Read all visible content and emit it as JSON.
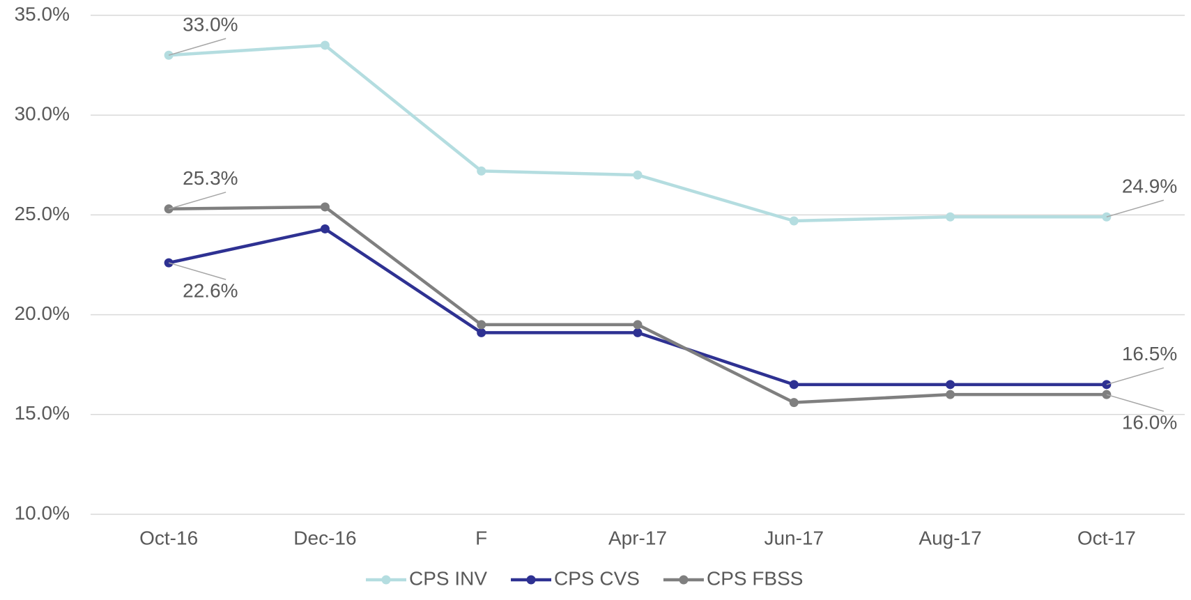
{
  "chart_data": {
    "type": "line",
    "categories": [
      "Oct-16",
      "Dec-16",
      "F",
      "Apr-17",
      "Jun-17",
      "Aug-17",
      "Oct-17"
    ],
    "series": [
      {
        "name": "CPS INV",
        "color": "#b4dde0",
        "values": [
          33.0,
          33.5,
          27.2,
          27.0,
          24.7,
          24.9,
          24.9
        ],
        "value_labels": [
          "33.0%",
          null,
          null,
          null,
          null,
          null,
          "24.9%"
        ]
      },
      {
        "name": "CPS CVS",
        "color": "#2e3192",
        "values": [
          22.6,
          24.3,
          19.1,
          19.1,
          16.5,
          16.5,
          16.5
        ],
        "value_labels": [
          "22.6%",
          null,
          null,
          null,
          null,
          null,
          "16.5%"
        ]
      },
      {
        "name": "CPS FBSS",
        "color": "#7f7f7f",
        "values": [
          25.3,
          25.4,
          19.5,
          19.5,
          15.6,
          16.0,
          16.0
        ],
        "value_labels": [
          "25.3%",
          null,
          null,
          null,
          null,
          null,
          "16.0%"
        ]
      }
    ],
    "ylim": [
      10,
      35
    ],
    "yticks": [
      {
        "value": 10,
        "label": "10.0%"
      },
      {
        "value": 15,
        "label": "15.0%"
      },
      {
        "value": 20,
        "label": "20.0%"
      },
      {
        "value": 25,
        "label": "25.0%"
      },
      {
        "value": 30,
        "label": "30.0%"
      },
      {
        "value": 35,
        "label": "35.0%"
      }
    ],
    "grid": true,
    "legend": "bottom"
  }
}
